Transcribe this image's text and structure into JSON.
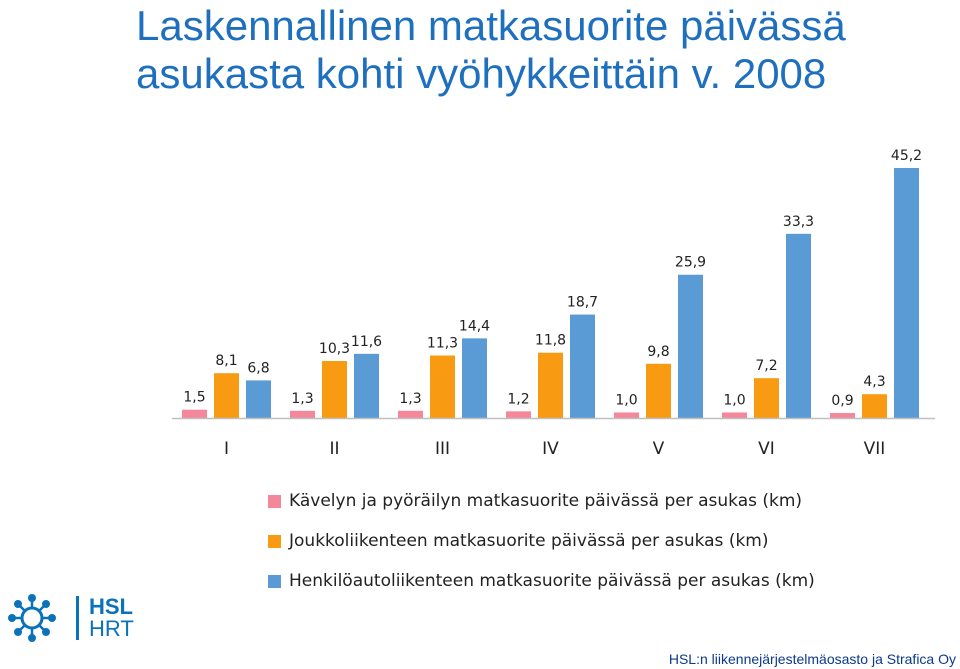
{
  "title": {
    "line1": "Laskennallinen matkasuorite päivässä",
    "line2": "asukasta kohti vyöhykkeittäin v. 2008"
  },
  "chart_data": {
    "type": "bar",
    "categories": [
      "I",
      "II",
      "III",
      "IV",
      "V",
      "VI",
      "VII"
    ],
    "series": [
      {
        "name": "Kävelyn ja pyöräilyn matkasuorite päivässä per asukas (km)",
        "color": "#f4879a",
        "values": [
          1.5,
          1.3,
          1.3,
          1.2,
          1.0,
          1.0,
          0.9
        ],
        "labels": [
          "1,5",
          "1,3",
          "1,3",
          "1,2",
          "1,0",
          "1,0",
          "0,9"
        ]
      },
      {
        "name": "Joukkoliikenteen matkasuorite päivässä per asukas (km)",
        "color": "#f89a12",
        "values": [
          8.1,
          10.3,
          11.3,
          11.8,
          9.8,
          7.2,
          4.3
        ],
        "labels": [
          "8,1",
          "10,3",
          "11,3",
          "11,8",
          "9,8",
          "7,2",
          "4,3"
        ]
      },
      {
        "name": "Henkilöautoliikenteen matkasuorite päivässä per asukas (km)",
        "color": "#5b9bd5",
        "values": [
          6.8,
          11.6,
          14.4,
          18.7,
          25.9,
          33.3,
          45.2
        ],
        "labels": [
          "6,8",
          "11,6",
          "14,4",
          "18,7",
          "25,9",
          "33,3",
          "45,2"
        ]
      }
    ],
    "ylim": [
      0,
      45.2
    ],
    "grid": false,
    "legend_position": "bottom"
  },
  "logo": {
    "line1": "HSL",
    "line2": "HRT"
  },
  "footer": "HSL:n liikennejärjestelmäosasto ja Strafica Oy"
}
